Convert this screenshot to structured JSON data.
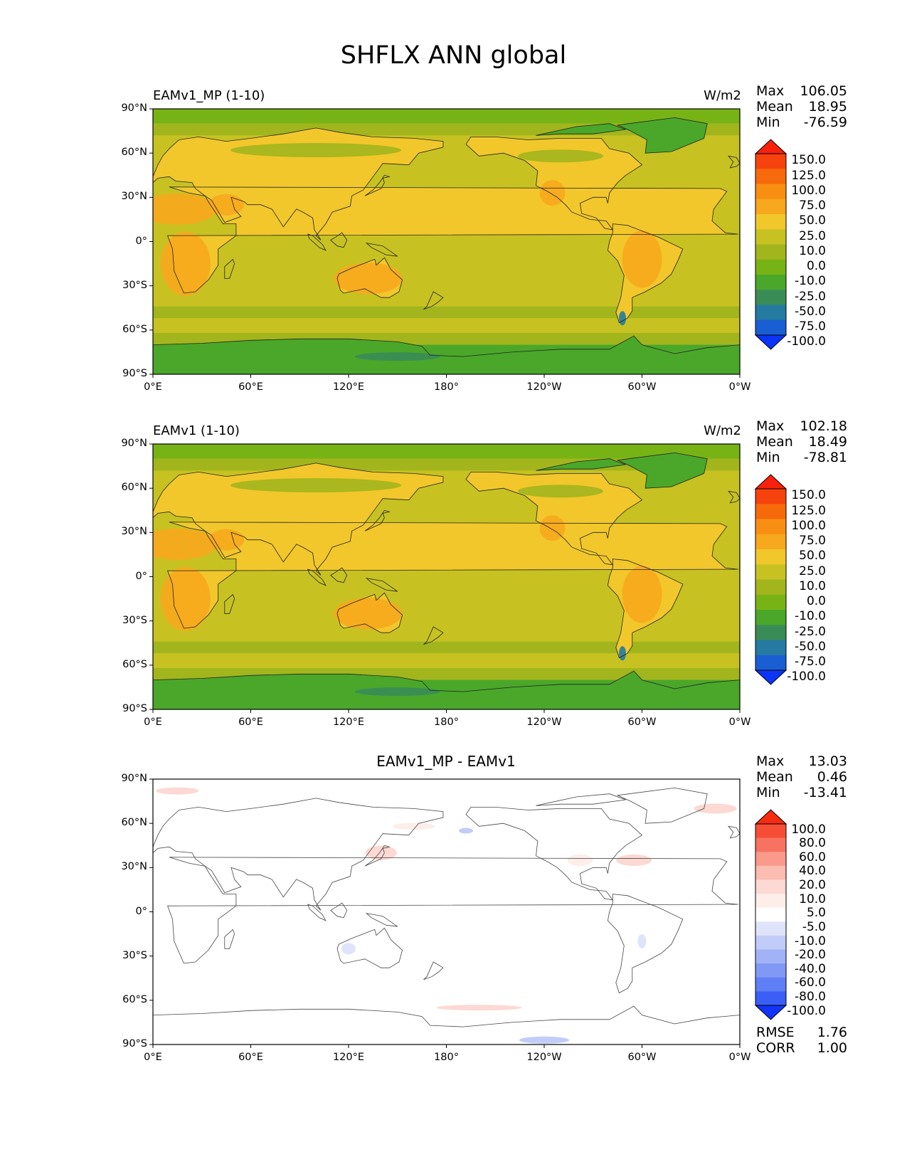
{
  "figure": {
    "title": "SHFLX ANN global"
  },
  "chart_data": [
    {
      "type": "heatmap",
      "title": "EAMv1_MP (1-10)",
      "units": "W/m2",
      "stats": {
        "max_label": "Max",
        "max": "106.05",
        "mean_label": "Mean",
        "mean": "18.95",
        "min_label": "Min",
        "min": "-76.59"
      },
      "x_ticks": [
        "0°E",
        "60°E",
        "120°E",
        "180°",
        "120°W",
        "60°W",
        "0°W"
      ],
      "y_ticks": [
        "90°N",
        "60°N",
        "30°N",
        "0°",
        "30°S",
        "60°S",
        "90°S"
      ],
      "colorbar": {
        "levels": [
          "150.0",
          "125.0",
          "100.0",
          "75.0",
          "50.0",
          "25.0",
          "10.0",
          "0.0",
          "-10.0",
          "-25.0",
          "-50.0",
          "-75.0",
          "-100.0"
        ],
        "colors": [
          "#f9210b",
          "#f6420d",
          "#f66a0b",
          "#f98f12",
          "#f7a81d",
          "#f2c72b",
          "#c7c222",
          "#a2b51d",
          "#78b315",
          "#4aa72a",
          "#3a8c57",
          "#247aa1",
          "#1a5ed4",
          "#0a34f6"
        ]
      }
    },
    {
      "type": "heatmap",
      "title": "EAMv1 (1-10)",
      "units": "W/m2",
      "stats": {
        "max_label": "Max",
        "max": "102.18",
        "mean_label": "Mean",
        "mean": "18.49",
        "min_label": "Min",
        "min": "-78.81"
      },
      "x_ticks": [
        "0°E",
        "60°E",
        "120°E",
        "180°",
        "120°W",
        "60°W",
        "0°W"
      ],
      "y_ticks": [
        "90°N",
        "60°N",
        "30°N",
        "0°",
        "30°S",
        "60°S",
        "90°S"
      ],
      "colorbar": {
        "levels": [
          "150.0",
          "125.0",
          "100.0",
          "75.0",
          "50.0",
          "25.0",
          "10.0",
          "0.0",
          "-10.0",
          "-25.0",
          "-50.0",
          "-75.0",
          "-100.0"
        ],
        "colors": [
          "#f9210b",
          "#f6420d",
          "#f66a0b",
          "#f98f12",
          "#f7a81d",
          "#f2c72b",
          "#c7c222",
          "#a2b51d",
          "#78b315",
          "#4aa72a",
          "#3a8c57",
          "#247aa1",
          "#1a5ed4",
          "#0a34f6"
        ]
      }
    },
    {
      "type": "heatmap",
      "title": "EAMv1_MP - EAMv1",
      "stats": {
        "max_label": "Max",
        "max": "13.03",
        "mean_label": "Mean",
        "mean": "0.46",
        "min_label": "Min",
        "min": "-13.41"
      },
      "metrics": {
        "rmse_label": "RMSE",
        "rmse": "1.76",
        "corr_label": "CORR",
        "corr": "1.00"
      },
      "x_ticks": [
        "0°E",
        "60°E",
        "120°E",
        "180°",
        "120°W",
        "60°W",
        "0°W"
      ],
      "y_ticks": [
        "90°N",
        "60°N",
        "30°N",
        "0°",
        "30°S",
        "60°S",
        "90°S"
      ],
      "colorbar": {
        "levels": [
          "100.0",
          "80.0",
          "60.0",
          "40.0",
          "20.0",
          "10.0",
          "5.0",
          "-5.0",
          "-10.0",
          "-20.0",
          "-40.0",
          "-60.0",
          "-80.0",
          "-100.0"
        ],
        "colors": [
          "#f62b0f",
          "#f64e36",
          "#f77261",
          "#f99a8b",
          "#fbbcb1",
          "#fcd9d2",
          "#fdeeea",
          "#ffffff",
          "#dfe4fb",
          "#c2ccf8",
          "#a2b2f6",
          "#8199f5",
          "#5e7ff5",
          "#3a5ef6",
          "#1234f7"
        ]
      }
    }
  ]
}
